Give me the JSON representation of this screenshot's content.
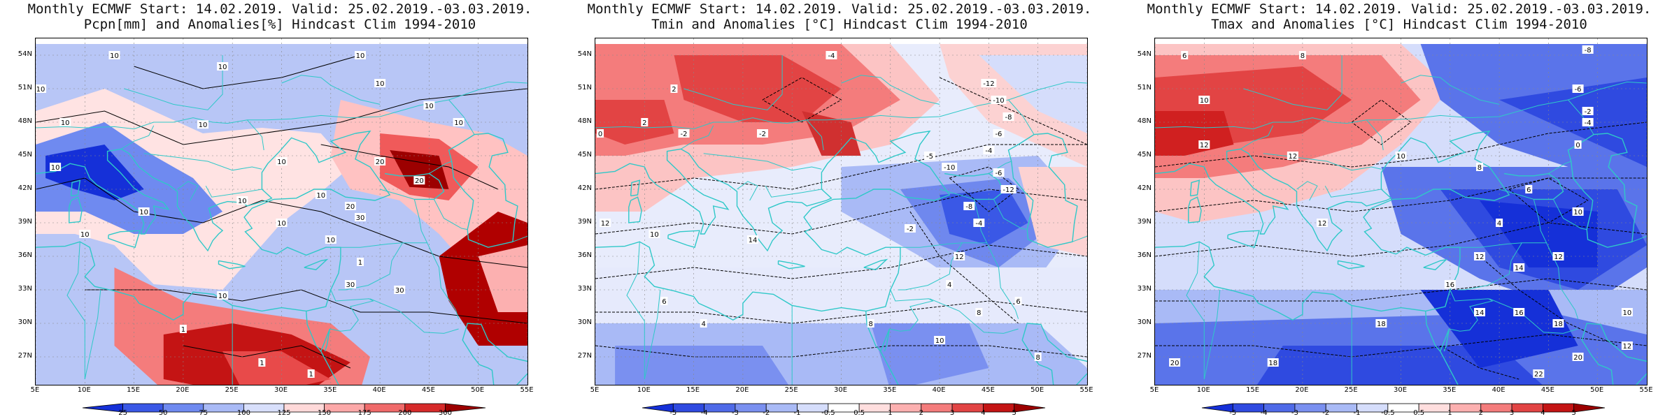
{
  "colors": {
    "coast": "#2fc8c8",
    "contour": "#000000"
  },
  "panels": [
    {
      "id": "pcpn",
      "title_line1": "Monthly ECMWF Start: 14.02.2019. Valid: 25.02.2019.-03.03.2019.",
      "title_line2": "Pcpn[mm] and Anomalies[%] Hindcast Clim 1994-2010",
      "field": "pcpn",
      "contour_labels": [
        "10",
        "10",
        "10",
        "10",
        "10",
        "10",
        "10",
        "10",
        "10",
        "10",
        "10",
        "10",
        "10",
        "10",
        "20",
        "20",
        "20",
        "10",
        "10",
        "10",
        "30",
        "30",
        "30",
        "10",
        "1",
        "1",
        "1",
        "1"
      ],
      "colorbar": {
        "labels": [
          "25",
          "50",
          "75",
          "100",
          "125",
          "150",
          "175",
          "200",
          "300"
        ],
        "colors": [
          "#1530d8",
          "#3a58e6",
          "#6f8af0",
          "#a9baf6",
          "#d8dffb",
          "#ffd9d9",
          "#fca8a8",
          "#f06a6a",
          "#d62a2a",
          "#9c0000"
        ]
      }
    },
    {
      "id": "tmin",
      "title_line1": "Monthly ECMWF Start: 14.02.2019. Valid: 25.02.2019.-03.03.2019.",
      "title_line2": "Tmin and Anomalies [°C] Hindcast Clim 1994-2010",
      "field": "tmin",
      "contour_labels": [
        "-4",
        "2",
        "2",
        "0",
        "-2",
        "-2",
        "-12",
        "-10",
        "-8",
        "-6",
        "-4",
        "-5",
        "-10",
        "-6",
        "-12",
        "-8",
        "-4",
        "-2",
        "12",
        "10",
        "14",
        "12",
        "6",
        "4",
        "8",
        "4",
        "6",
        "8",
        "10",
        "8"
      ],
      "colorbar": {
        "labels": [
          "-5",
          "-4",
          "-3",
          "-2",
          "-1",
          "-0.5",
          "0.5",
          "1",
          "2",
          "3",
          "4",
          "5"
        ],
        "colors": [
          "#1530d8",
          "#2f4ae0",
          "#4f6ae8",
          "#7a90f0",
          "#a9baf6",
          "#d5ddfb",
          "#ffffff",
          "#ffdede",
          "#fcb0b0",
          "#f47c7c",
          "#e24444",
          "#c41414",
          "#9c0000"
        ]
      }
    },
    {
      "id": "tmax",
      "title_line1": "Monthly ECMWF Start: 14.02.2019. Valid: 25.02.2019.-03.03.2019.",
      "title_line2": "Tmax and Anomalies [°C] Hindcast Clim 1994-2010",
      "field": "tmax",
      "contour_labels": [
        "6",
        "8",
        "-8",
        "-6",
        "10",
        "-2",
        "-4",
        "0",
        "12",
        "12",
        "10",
        "8",
        "6",
        "4",
        "12",
        "10",
        "12",
        "12",
        "14",
        "16",
        "14",
        "18",
        "16",
        "18",
        "20",
        "22",
        "20",
        "18",
        "12",
        "10"
      ],
      "colorbar": {
        "labels": [
          "-5",
          "-4",
          "-3",
          "-2",
          "-1",
          "-0.5",
          "0.5",
          "1",
          "2",
          "3",
          "4",
          "5"
        ],
        "colors": [
          "#1530d8",
          "#2f4ae0",
          "#4f6ae8",
          "#7a90f0",
          "#a9baf6",
          "#d5ddfb",
          "#ffffff",
          "#ffdede",
          "#fcb0b0",
          "#f47c7c",
          "#e24444",
          "#c41414",
          "#9c0000"
        ]
      }
    }
  ],
  "axes": {
    "lat_labels": [
      "54N",
      "51N",
      "48N",
      "45N",
      "42N",
      "39N",
      "36N",
      "33N",
      "30N",
      "27N"
    ],
    "lat_values": [
      54,
      51,
      48,
      45,
      42,
      39,
      36,
      33,
      30,
      27
    ],
    "lat_range": [
      24.5,
      55.5
    ],
    "lon_labels": [
      "5E",
      "10E",
      "15E",
      "20E",
      "25E",
      "30E",
      "35E",
      "40E",
      "45E",
      "50E",
      "55E"
    ],
    "lon_values": [
      5,
      10,
      15,
      20,
      25,
      30,
      35,
      40,
      45,
      50,
      55
    ],
    "lon_range": [
      5,
      55
    ]
  }
}
